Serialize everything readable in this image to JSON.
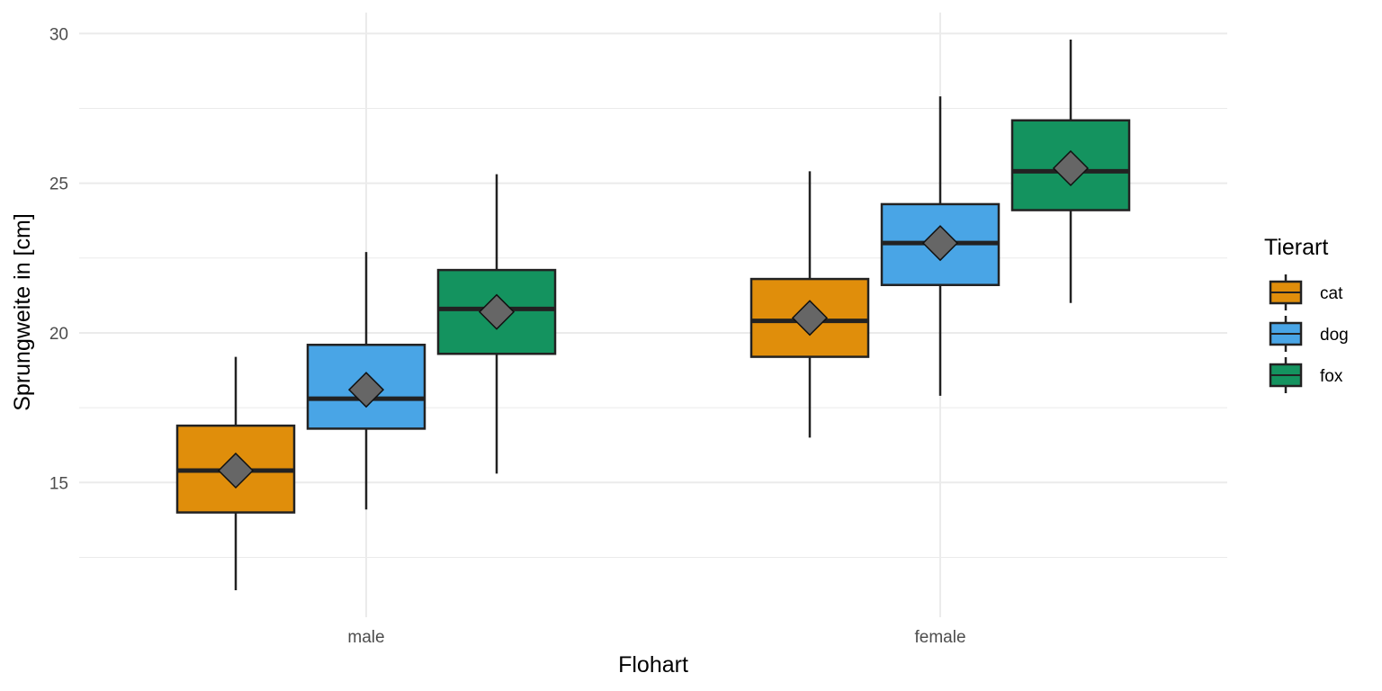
{
  "chart_data": {
    "type": "boxplot",
    "xlabel": "Flohart",
    "ylabel": "Sprungweite in [cm]",
    "categories": [
      "male",
      "female"
    ],
    "ylim": [
      10.5,
      30.7
    ],
    "yticks": [
      15,
      20,
      25,
      30
    ],
    "y_minor_ticks": [
      12.5,
      17.5,
      22.5,
      27.5
    ],
    "grid": true,
    "legend": {
      "title": "Tierart",
      "position": "right"
    },
    "series": [
      {
        "name": "cat",
        "color": "#e08e0b",
        "boxes": [
          {
            "category": "male",
            "min": 11.4,
            "q1": 14.0,
            "median": 15.4,
            "q3": 16.9,
            "max": 19.2,
            "mean": 15.4
          },
          {
            "category": "female",
            "min": 16.5,
            "q1": 19.2,
            "median": 20.4,
            "q3": 21.8,
            "max": 25.4,
            "mean": 20.5
          }
        ]
      },
      {
        "name": "dog",
        "color": "#49a5e6",
        "boxes": [
          {
            "category": "male",
            "min": 14.1,
            "q1": 16.8,
            "median": 17.8,
            "q3": 19.6,
            "max": 22.7,
            "mean": 18.1
          },
          {
            "category": "female",
            "min": 17.9,
            "q1": 21.6,
            "median": 23.0,
            "q3": 24.3,
            "max": 27.9,
            "mean": 23.0
          }
        ]
      },
      {
        "name": "fox",
        "color": "#14935f",
        "boxes": [
          {
            "category": "male",
            "min": 15.3,
            "q1": 19.3,
            "median": 20.8,
            "q3": 22.1,
            "max": 25.3,
            "mean": 20.7
          },
          {
            "category": "female",
            "min": 21.0,
            "q1": 24.1,
            "median": 25.4,
            "q3": 27.1,
            "max": 29.8,
            "mean": 25.5
          }
        ]
      }
    ]
  }
}
